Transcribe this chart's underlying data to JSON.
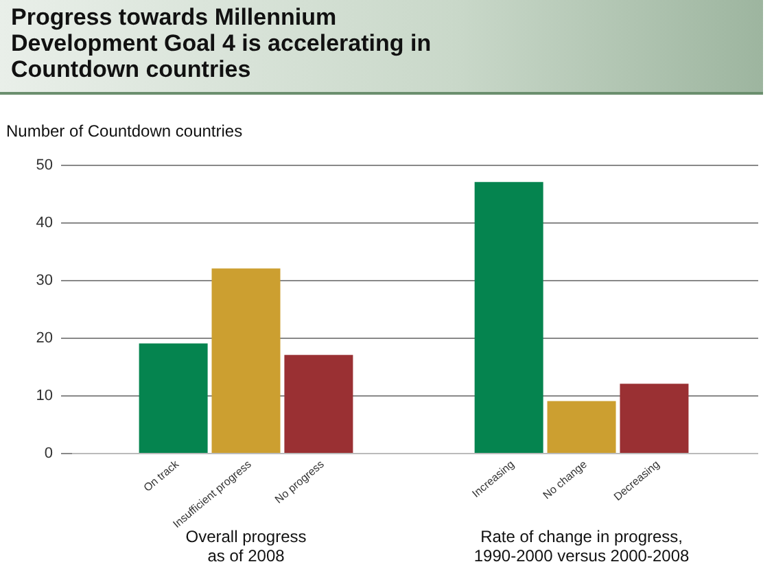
{
  "chart_data": {
    "type": "bar",
    "title": "Progress towards Millennium Development Goal 4 is accelerating in Countdown countries",
    "ylabel": "Number of Countdown countries",
    "categories": [
      "On track",
      "Insufficient progress",
      "No progress",
      "Increasing",
      "No change",
      "Decreasing"
    ],
    "values": [
      19,
      32,
      17,
      47,
      9,
      12
    ],
    "colors": [
      "#05844f",
      "#cc9f30",
      "#9a3033",
      "#05844f",
      "#cc9f30",
      "#9a3033"
    ],
    "ylim": [
      0,
      50
    ],
    "yticks": [
      0,
      10,
      20,
      30,
      40,
      50
    ],
    "grid": "y",
    "annotations": [
      "Overall progress\nas of 2008",
      "Rate of change in progress,\n1990-2000 versus 2000-2008"
    ]
  }
}
